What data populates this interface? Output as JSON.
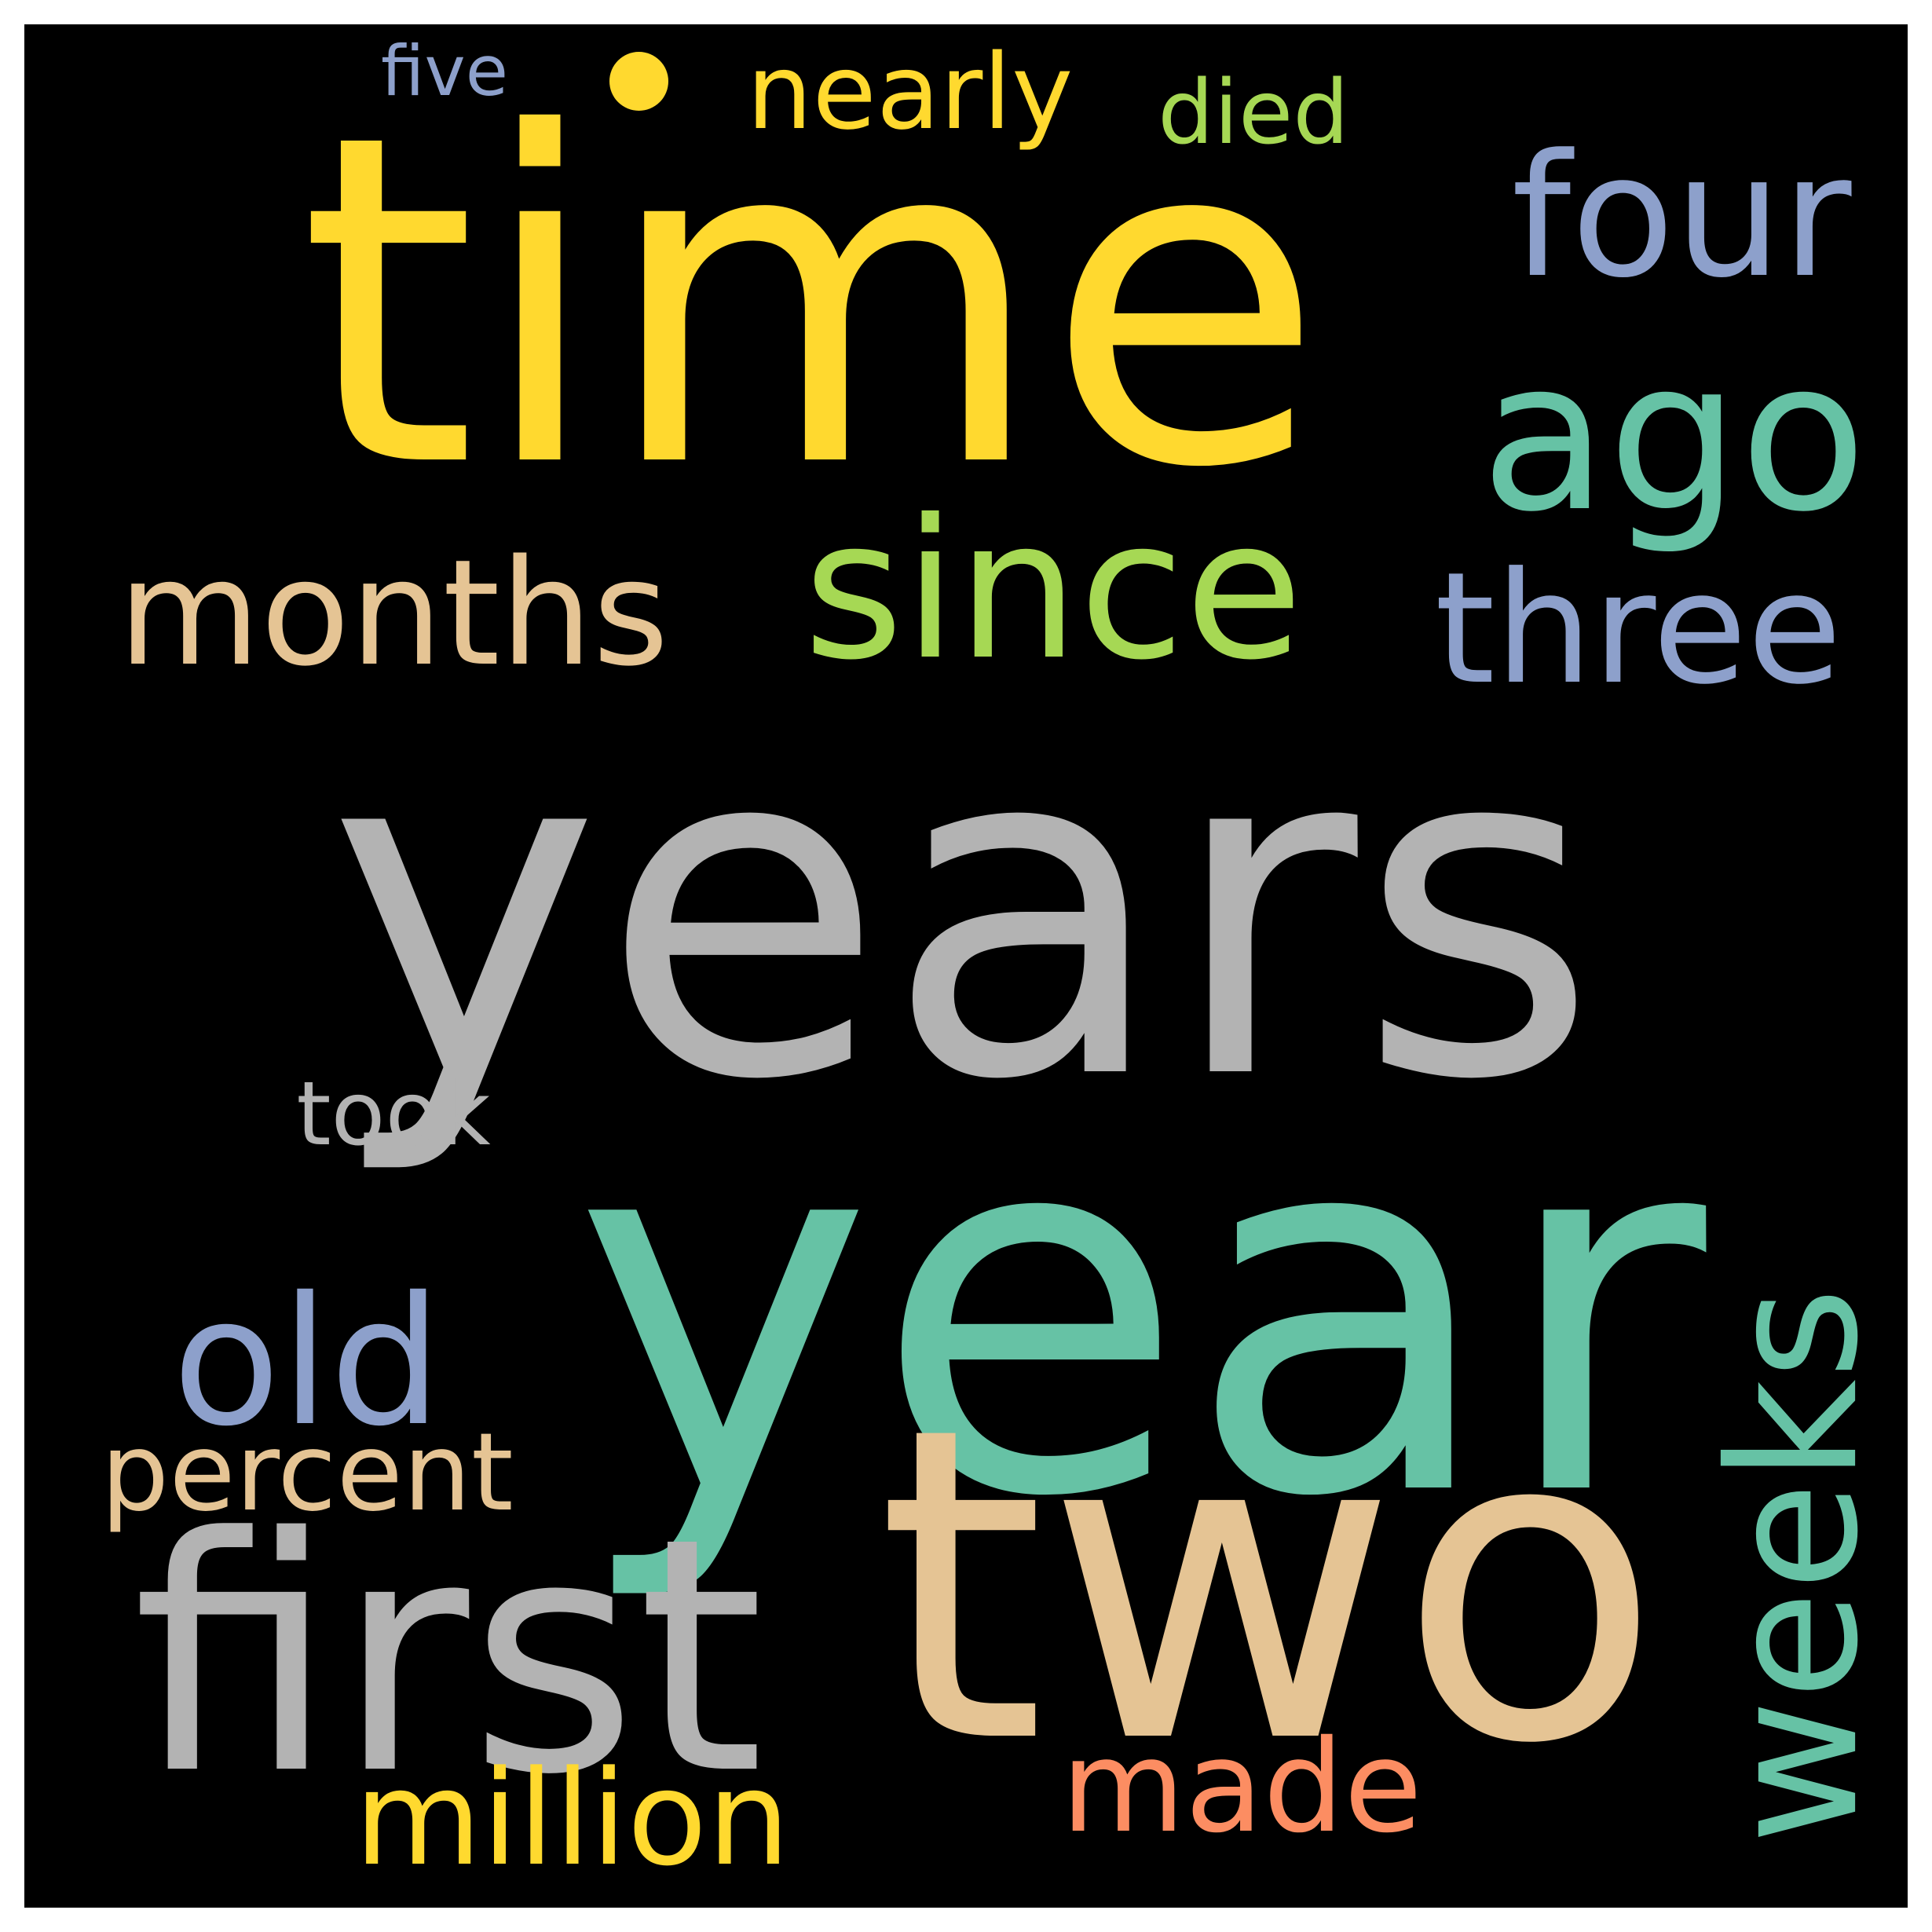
{
  "cloud": {
    "background": "#000000",
    "words": [
      {
        "id": "time",
        "text": "time",
        "color": "#ffd92f"
      },
      {
        "id": "years",
        "text": "years",
        "color": "#b3b3b3"
      },
      {
        "id": "year",
        "text": "year",
        "color": "#66c2a5"
      },
      {
        "id": "two",
        "text": "two",
        "color": "#e5c494"
      },
      {
        "id": "since",
        "text": "since",
        "color": "#a6d854"
      },
      {
        "id": "months",
        "text": "months",
        "color": "#e5c494"
      },
      {
        "id": "three",
        "text": "three",
        "color": "#8da0cb"
      },
      {
        "id": "ago",
        "text": "ago",
        "color": "#66c2a5"
      },
      {
        "id": "four",
        "text": "four",
        "color": "#8da0cb"
      },
      {
        "id": "first",
        "text": "first",
        "color": "#b3b3b3"
      },
      {
        "id": "weeks",
        "text": "weeks",
        "color": "#66c2a5"
      },
      {
        "id": "old",
        "text": "old",
        "color": "#8da0cb"
      },
      {
        "id": "million",
        "text": "million",
        "color": "#ffd92f"
      },
      {
        "id": "made",
        "text": "made",
        "color": "#fc8d62"
      },
      {
        "id": "percent",
        "text": "percent",
        "color": "#e5c494"
      },
      {
        "id": "nearly",
        "text": "nearly",
        "color": "#ffd92f"
      },
      {
        "id": "took",
        "text": "took",
        "color": "#b3b3b3"
      },
      {
        "id": "died",
        "text": "died",
        "color": "#a6d854"
      },
      {
        "id": "five",
        "text": "five",
        "color": "#8da0cb"
      }
    ],
    "dot_color": "#ffd92f"
  }
}
